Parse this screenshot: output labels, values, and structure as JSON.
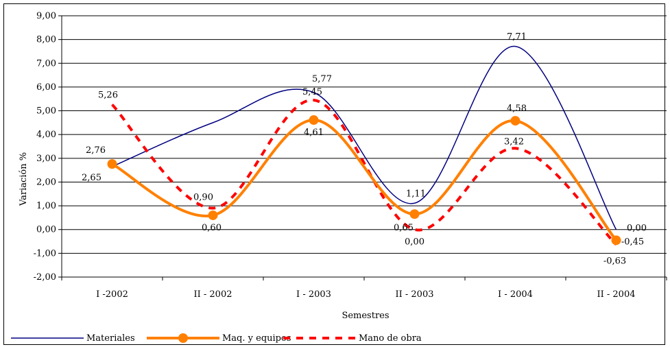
{
  "chart_data": {
    "type": "line",
    "categories": [
      "I  -2002",
      "II - 2002",
      "I - 2003",
      "II - 2003",
      "I - 2004",
      "II - 2004"
    ],
    "xlabel": "Semestres",
    "ylabel": "Variación %",
    "ylim": [
      -2,
      9
    ],
    "yticks": [
      "-2,00",
      "-1,00",
      "0,00",
      "1,00",
      "2,00",
      "3,00",
      "4,00",
      "5,00",
      "6,00",
      "7,00",
      "8,00",
      "9,00"
    ],
    "grid": "horizontal",
    "legend_position": "bottom",
    "series": [
      {
        "name": "Materiales",
        "color": "#000080",
        "style": "solid-thin",
        "values": [
          2.65,
          4.5,
          5.77,
          1.11,
          7.71,
          0.0
        ],
        "labels": [
          "2,65",
          "",
          "5,77",
          "1,11",
          "7,71",
          "0,00"
        ]
      },
      {
        "name": "Maq. y equipos",
        "color": "#FF8000",
        "style": "solid-thick-markers",
        "values": [
          2.76,
          0.6,
          4.61,
          0.65,
          4.58,
          -0.45
        ],
        "labels": [
          "2,76",
          "0,60",
          "4,61",
          "0,65",
          "4,58",
          "-0,45"
        ]
      },
      {
        "name": "Mano de obra",
        "color": "#FF0000",
        "style": "dashed",
        "values": [
          5.26,
          0.9,
          5.45,
          0.0,
          3.42,
          -0.63
        ],
        "labels": [
          "5,26",
          "0,90",
          "5,45",
          "0,00",
          "3,42",
          "-0,63"
        ]
      }
    ]
  }
}
